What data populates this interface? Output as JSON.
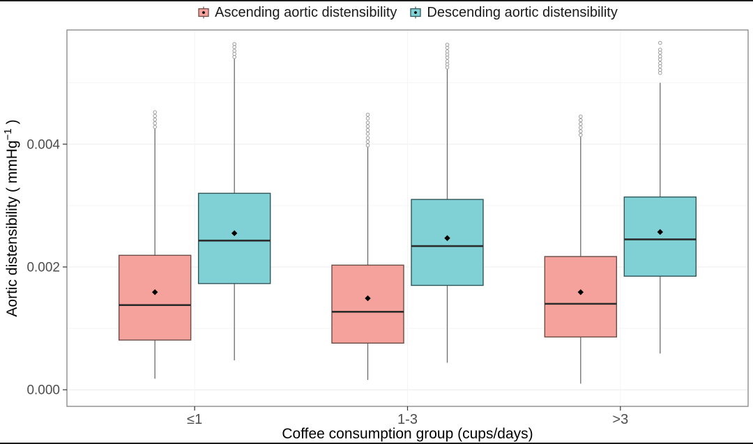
{
  "figure": {
    "background": "#ffffff",
    "panel_border_color": "#7a7a7a",
    "gridline_major_color": "#ececec",
    "gridline_minor_color": "#f4f4f4",
    "tick_color": "#333333",
    "tick_label_color": "#4d4d4d",
    "axis_title_color": "#000000",
    "whisker_color": "#6b6b6b",
    "outlier_color": "#9c9c9c",
    "median_color": "#2b2b2b",
    "mean_color": "#000000"
  },
  "legend": {
    "position": "top",
    "items": [
      {
        "label": "Ascending aortic distensibility"
      },
      {
        "label": "Descending aortic distensibility"
      }
    ]
  },
  "chart_data": {
    "type": "boxplot",
    "title": "",
    "xlabel": "Coffee consumption group (cups/days)",
    "ylabel": "Aortic distensibility ( mmHg⁻¹ )",
    "ylabel_parts": {
      "pre": "Aortic distensibility ( mmHg",
      "sup": "−1",
      "post": " )"
    },
    "categories": [
      "≤1",
      "1-3",
      ">3"
    ],
    "y_ticks": [
      0,
      0.002,
      0.004
    ],
    "y_tick_labels": [
      "0.000",
      "0.002",
      "0.004"
    ],
    "y_minor_gridlines": [
      0.001,
      0.003,
      0.005
    ],
    "ylim": [
      -0.00027,
      0.00586
    ],
    "grid": true,
    "legend_position": "top",
    "units": "mmHg^-1",
    "series": [
      {
        "id": "ascending",
        "name": "Ascending aortic distensibility",
        "fill": "#F4A29B",
        "stroke": "#6D4B46",
        "boxes": [
          {
            "group": "≤1",
            "q1": 0.00081,
            "median": 0.00138,
            "q3": 0.00219,
            "mean": 0.00159,
            "whisker_low": 0.00018,
            "whisker_high": 0.00425,
            "outliers": [
              0.00428,
              0.00434,
              0.0044,
              0.00446,
              0.00452
            ]
          },
          {
            "group": "1-3",
            "q1": 0.00076,
            "median": 0.00127,
            "q3": 0.00203,
            "mean": 0.00149,
            "whisker_low": 0.00016,
            "whisker_high": 0.00395,
            "outliers": [
              0.00398,
              0.00404,
              0.0041,
              0.00417,
              0.00423,
              0.00429,
              0.00435,
              0.00442,
              0.00448
            ]
          },
          {
            "group": ">3",
            "q1": 0.00086,
            "median": 0.0014,
            "q3": 0.00217,
            "mean": 0.00159,
            "whisker_low": 0.0001,
            "whisker_high": 0.00412,
            "outliers": [
              0.00415,
              0.00421,
              0.00427,
              0.00433,
              0.00439,
              0.00445
            ]
          }
        ]
      },
      {
        "id": "descending",
        "name": "Descending aortic distensibility",
        "fill": "#80D1D5",
        "stroke": "#315659",
        "boxes": [
          {
            "group": "≤1",
            "q1": 0.00173,
            "median": 0.00243,
            "q3": 0.0032,
            "mean": 0.00255,
            "whisker_low": 0.00048,
            "whisker_high": 0.00539,
            "outliers": [
              0.00542,
              0.00547,
              0.00552,
              0.00558,
              0.00563
            ]
          },
          {
            "group": "1-3",
            "q1": 0.0017,
            "median": 0.00234,
            "q3": 0.0031,
            "mean": 0.00247,
            "whisker_low": 0.00044,
            "whisker_high": 0.00522,
            "outliers": [
              0.00525,
              0.0053,
              0.00535,
              0.00541,
              0.00546,
              0.00551,
              0.00557,
              0.00562
            ]
          },
          {
            "group": ">3",
            "q1": 0.00185,
            "median": 0.00245,
            "q3": 0.00314,
            "mean": 0.00257,
            "whisker_low": 0.00059,
            "whisker_high": 0.005,
            "outliers": [
              0.00516,
              0.00521,
              0.00527,
              0.00532,
              0.00538,
              0.00543,
              0.00549,
              0.00554,
              0.00565
            ]
          }
        ]
      }
    ]
  }
}
